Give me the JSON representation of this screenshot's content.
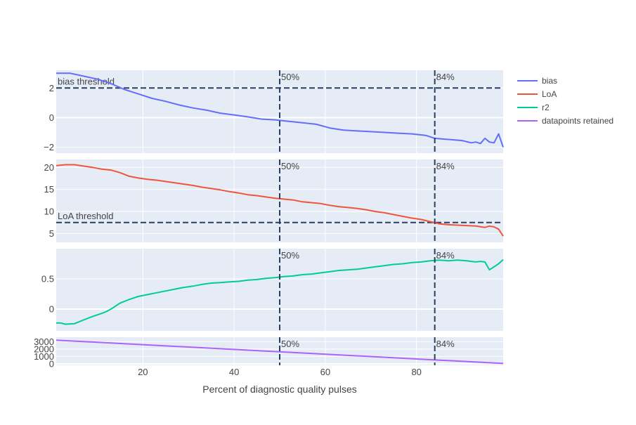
{
  "chart_data": {
    "type": "line",
    "xlabel": "Percent of diagnostic quality pulses",
    "xlim": [
      1,
      99
    ],
    "x_ticks": [
      20,
      40,
      60,
      80
    ],
    "grid": true,
    "legend_placement": "top-right",
    "vlines": [
      {
        "x": 50,
        "label": "50%"
      },
      {
        "x": 84,
        "label": "84%"
      }
    ],
    "colors": {
      "plot_bg": "#e5ecf6",
      "grid": "#ffffff",
      "reference_line": "#2a3f5f",
      "text": "#444444"
    },
    "series": [
      {
        "name": "bias",
        "color": "#636efa",
        "ylim": [
          -2.4,
          3.2
        ],
        "y_ticks": [
          -2,
          0,
          2
        ],
        "threshold": {
          "y": 2,
          "label": "bias threshold"
        },
        "x": [
          1,
          4,
          7,
          10,
          13,
          16,
          19,
          22,
          25,
          28,
          31,
          34,
          37,
          40,
          43,
          46,
          49,
          52,
          55,
          58,
          61,
          64,
          67,
          70,
          73,
          76,
          79,
          82,
          84,
          86,
          88,
          90,
          92,
          93,
          94,
          95,
          96,
          97,
          98,
          99
        ],
        "y": [
          3.0,
          3.0,
          2.8,
          2.6,
          2.3,
          1.9,
          1.6,
          1.3,
          1.1,
          0.85,
          0.65,
          0.5,
          0.3,
          0.18,
          0.05,
          -0.1,
          -0.15,
          -0.25,
          -0.35,
          -0.45,
          -0.7,
          -0.85,
          -0.9,
          -0.95,
          -1.0,
          -1.05,
          -1.1,
          -1.2,
          -1.4,
          -1.45,
          -1.5,
          -1.55,
          -1.7,
          -1.65,
          -1.75,
          -1.4,
          -1.65,
          -1.7,
          -1.1,
          -2.0
        ]
      },
      {
        "name": "LoA",
        "color": "#ef553b",
        "ylim": [
          3,
          21.8
        ],
        "y_ticks": [
          5,
          10,
          15,
          20
        ],
        "threshold": {
          "y": 7.5,
          "label": "LoA threshold"
        },
        "x": [
          1,
          3,
          5,
          7,
          9,
          11,
          13,
          15,
          17,
          19,
          21,
          23,
          25,
          27,
          29,
          31,
          33,
          35,
          37,
          39,
          41,
          43,
          45,
          47,
          49,
          51,
          53,
          55,
          57,
          59,
          61,
          63,
          65,
          67,
          69,
          71,
          73,
          75,
          77,
          79,
          81,
          83,
          85,
          87,
          89,
          91,
          93,
          95,
          96,
          97,
          98,
          99
        ],
        "y": [
          20.4,
          20.6,
          20.6,
          20.3,
          20.0,
          19.6,
          19.4,
          18.8,
          18.0,
          17.6,
          17.3,
          17.1,
          16.8,
          16.5,
          16.2,
          15.9,
          15.5,
          15.2,
          14.9,
          14.5,
          14.2,
          13.8,
          13.6,
          13.3,
          13.0,
          12.8,
          12.6,
          12.2,
          12.0,
          11.8,
          11.4,
          11.1,
          10.9,
          10.7,
          10.4,
          10.0,
          9.7,
          9.3,
          8.9,
          8.5,
          8.2,
          7.7,
          7.2,
          7.0,
          6.9,
          6.8,
          6.7,
          6.4,
          6.7,
          6.5,
          6.0,
          4.4
        ]
      },
      {
        "name": "r2",
        "color": "#00cc96",
        "ylim": [
          -0.36,
          1.0
        ],
        "y_ticks": [
          0,
          0.5
        ],
        "x": [
          1,
          2,
          3,
          5,
          7,
          9,
          11,
          12,
          13,
          15,
          17,
          19,
          21,
          23,
          25,
          27,
          29,
          31,
          33,
          35,
          37,
          39,
          41,
          43,
          45,
          47,
          49,
          51,
          53,
          55,
          57,
          59,
          61,
          63,
          65,
          67,
          69,
          71,
          73,
          75,
          77,
          79,
          81,
          83,
          85,
          87,
          89,
          91,
          92,
          93,
          94,
          95,
          96,
          97,
          98,
          99
        ],
        "y": [
          -0.23,
          -0.23,
          -0.25,
          -0.24,
          -0.18,
          -0.12,
          -0.07,
          -0.04,
          0.0,
          0.1,
          0.16,
          0.21,
          0.24,
          0.27,
          0.3,
          0.33,
          0.36,
          0.38,
          0.41,
          0.43,
          0.44,
          0.45,
          0.46,
          0.48,
          0.49,
          0.51,
          0.52,
          0.54,
          0.55,
          0.57,
          0.58,
          0.6,
          0.62,
          0.64,
          0.65,
          0.66,
          0.68,
          0.7,
          0.72,
          0.74,
          0.75,
          0.77,
          0.78,
          0.8,
          0.81,
          0.8,
          0.81,
          0.8,
          0.79,
          0.78,
          0.79,
          0.78,
          0.65,
          0.7,
          0.75,
          0.82
        ]
      },
      {
        "name": "datapoints retained",
        "color": "#ab63fa",
        "ylim": [
          -200,
          3600
        ],
        "y_ticks": [
          0,
          1000,
          2000,
          3000
        ],
        "x": [
          1,
          99
        ],
        "y": [
          3200,
          50
        ]
      }
    ]
  }
}
